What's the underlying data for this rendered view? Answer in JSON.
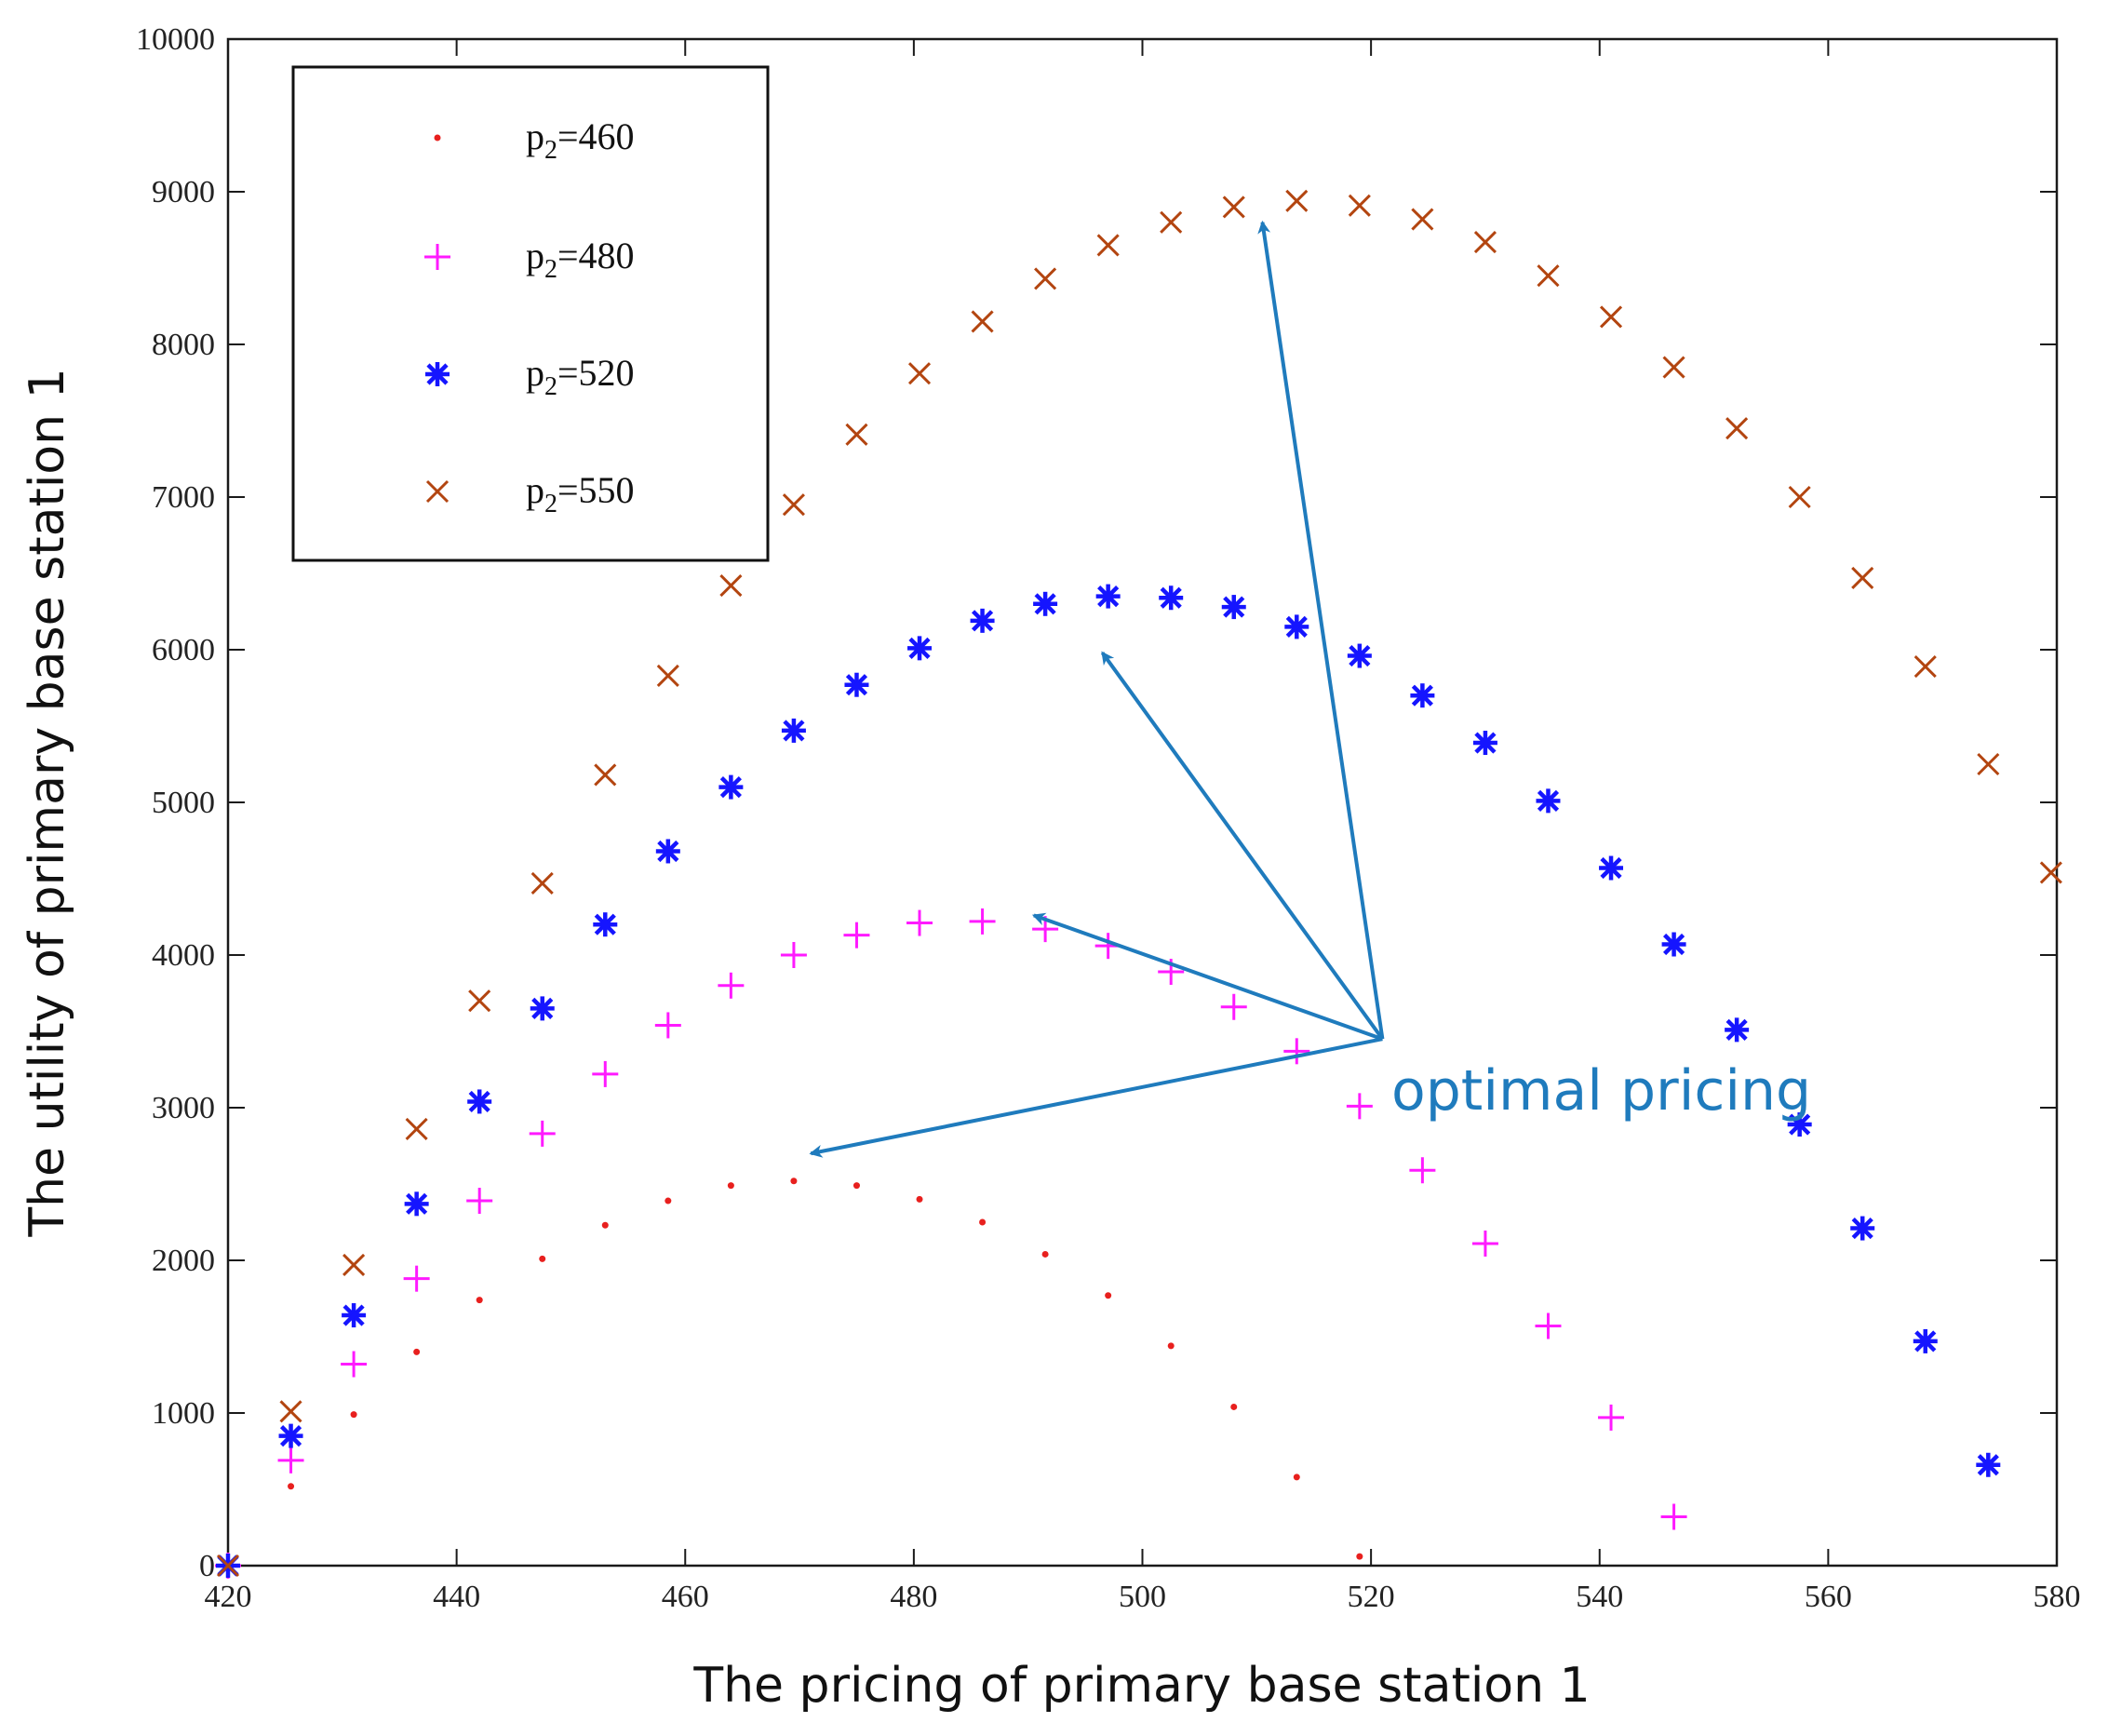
{
  "chart_data": {
    "type": "scatter",
    "title": "",
    "xlabel": "The pricing of primary base station 1",
    "ylabel": "The utility of primary base station 1",
    "xlim": [
      420,
      580
    ],
    "ylim": [
      0,
      10000
    ],
    "xticks": [
      420,
      440,
      460,
      480,
      500,
      520,
      540,
      560,
      580
    ],
    "yticks": [
      0,
      1000,
      2000,
      3000,
      4000,
      5000,
      6000,
      7000,
      8000,
      9000,
      10000
    ],
    "grid": false,
    "legend_position": "top-left",
    "series": [
      {
        "name": "p2=460",
        "legend_prefix": "p",
        "legend_sub": "2",
        "legend_suffix": "=460",
        "marker": "dot",
        "color": "#e8201e",
        "x": [
          420,
          425.5,
          431,
          436.5,
          442,
          447.5,
          453,
          458.5,
          464,
          469.5,
          475,
          480.5,
          486,
          491.5,
          497,
          502.5,
          508,
          513.5,
          519
        ],
        "y": [
          0,
          520,
          990,
          1400,
          1740,
          2010,
          2230,
          2390,
          2490,
          2520,
          2490,
          2400,
          2250,
          2040,
          1770,
          1440,
          1040,
          580,
          60
        ]
      },
      {
        "name": "p2=480",
        "legend_prefix": "p",
        "legend_sub": "2",
        "legend_suffix": "=480",
        "marker": "plus",
        "color": "#ff1aff",
        "x": [
          420,
          425.5,
          431,
          436.5,
          442,
          447.5,
          453,
          458.5,
          464,
          469.5,
          475,
          480.5,
          486,
          491.5,
          497,
          502.5,
          508,
          513.5,
          519,
          524.5,
          530,
          535.5,
          541,
          546.5
        ],
        "y": [
          0,
          690,
          1320,
          1880,
          2390,
          2830,
          3220,
          3540,
          3800,
          4000,
          4130,
          4210,
          4220,
          4170,
          4060,
          3890,
          3660,
          3370,
          3010,
          2590,
          2110,
          1570,
          970,
          320
        ]
      },
      {
        "name": "p2=520",
        "legend_prefix": "p",
        "legend_sub": "2",
        "legend_suffix": "=520",
        "marker": "asterisk",
        "color": "#1515ff",
        "x": [
          420,
          425.5,
          431,
          436.5,
          442,
          447.5,
          453,
          458.5,
          464,
          469.5,
          475,
          480.5,
          486,
          491.5,
          497,
          502.5,
          508,
          513.5,
          519,
          524.5,
          530,
          535.5,
          541,
          546.5,
          552,
          557.5,
          563,
          568.5,
          574
        ],
        "y": [
          0,
          850,
          1640,
          2370,
          3040,
          3650,
          4200,
          4680,
          5100,
          5470,
          5770,
          6010,
          6190,
          6300,
          6350,
          6340,
          6280,
          6150,
          5960,
          5700,
          5390,
          5010,
          4570,
          4070,
          3510,
          2890,
          2210,
          1470,
          660
        ]
      },
      {
        "name": "p2=550",
        "legend_prefix": "p",
        "legend_sub": "2",
        "legend_suffix": "=550",
        "marker": "x",
        "color": "#b34510",
        "x": [
          420,
          425.5,
          431,
          436.5,
          442,
          447.5,
          453,
          458.5,
          464,
          469.5,
          475,
          480.5,
          486,
          491.5,
          497,
          502.5,
          508,
          513.5,
          519,
          524.5,
          530,
          535.5,
          541,
          546.5,
          552,
          557.5,
          563,
          568.5,
          574,
          579.5
        ],
        "y": [
          0,
          1010,
          1970,
          2860,
          3700,
          4470,
          5180,
          5830,
          6420,
          6950,
          7410,
          7810,
          8150,
          8430,
          8650,
          8800,
          8900,
          8940,
          8910,
          8820,
          8670,
          8450,
          8180,
          7850,
          7450,
          7000,
          6470,
          5890,
          5250,
          4540
        ]
      }
    ],
    "annotation": {
      "text": "optimal pricing",
      "color": "#1f7bbd",
      "origin": [
        521,
        3450
      ],
      "arrow_targets": [
        [
          510.5,
          8800
        ],
        [
          496.5,
          5980
        ],
        [
          490.5,
          4260
        ],
        [
          471,
          2700
        ]
      ]
    }
  }
}
